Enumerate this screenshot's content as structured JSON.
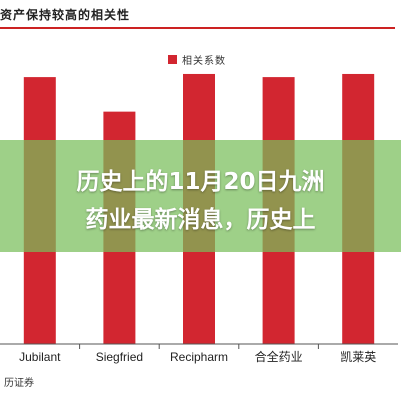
{
  "chart_data": {
    "type": "bar",
    "title": "资产保持较高的相关性",
    "categories": [
      "Jubilant",
      "Siegfried",
      "Recipharm",
      "合全药业",
      "凯莱英"
    ],
    "series": [
      {
        "name": "相关系数",
        "values": [
          0.85,
          0.74,
          0.86,
          0.85,
          0.86
        ],
        "color": "#d22630"
      }
    ],
    "ylim": [
      0,
      1
    ],
    "grid": false,
    "legend_position": "top-center",
    "source": "历证券"
  },
  "banner": {
    "line1": "历史上的11月20日九洲",
    "line2": "药业最新消息，历史上"
  }
}
